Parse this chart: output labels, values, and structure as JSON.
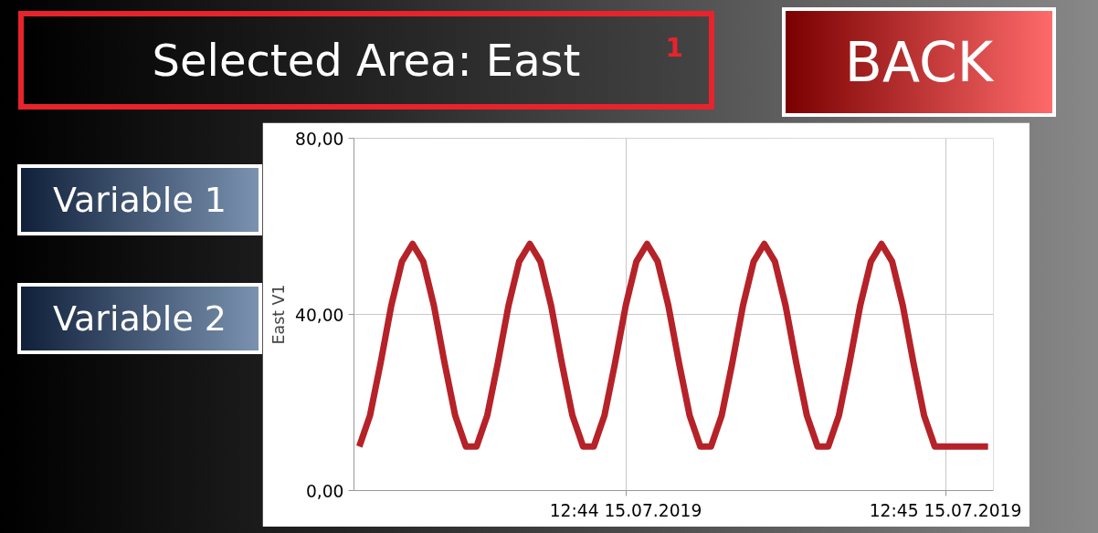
{
  "chart_data": {
    "type": "line",
    "title": "Selected Area: East",
    "ylabel": "East V1",
    "annotations": [
      "1",
      "BACK",
      "Variable 1",
      "Variable 2"
    ],
    "x": [
      "2019-07-15T12:43:10",
      "2019-07-15T12:43:12",
      "2019-07-15T12:43:14",
      "2019-07-15T12:43:16",
      "2019-07-15T12:43:18",
      "2019-07-15T12:43:20",
      "2019-07-15T12:43:22",
      "2019-07-15T12:43:24",
      "2019-07-15T12:43:26",
      "2019-07-15T12:43:28",
      "2019-07-15T12:43:30",
      "2019-07-15T12:43:32",
      "2019-07-15T12:43:34",
      "2019-07-15T12:43:36",
      "2019-07-15T12:43:38",
      "2019-07-15T12:43:40",
      "2019-07-15T12:43:42",
      "2019-07-15T12:43:44",
      "2019-07-15T12:43:46",
      "2019-07-15T12:43:48",
      "2019-07-15T12:43:50",
      "2019-07-15T12:43:52",
      "2019-07-15T12:43:54",
      "2019-07-15T12:43:56",
      "2019-07-15T12:43:58",
      "2019-07-15T12:44:00",
      "2019-07-15T12:44:02",
      "2019-07-15T12:44:04",
      "2019-07-15T12:44:06",
      "2019-07-15T12:44:08",
      "2019-07-15T12:44:10",
      "2019-07-15T12:44:12",
      "2019-07-15T12:44:14",
      "2019-07-15T12:44:16",
      "2019-07-15T12:44:18",
      "2019-07-15T12:44:20",
      "2019-07-15T12:44:22",
      "2019-07-15T12:44:24",
      "2019-07-15T12:44:26",
      "2019-07-15T12:44:28",
      "2019-07-15T12:44:30",
      "2019-07-15T12:44:32",
      "2019-07-15T12:44:34",
      "2019-07-15T12:44:36",
      "2019-07-15T12:44:38",
      "2019-07-15T12:44:40",
      "2019-07-15T12:44:42",
      "2019-07-15T12:44:44",
      "2019-07-15T12:44:46",
      "2019-07-15T12:44:48",
      "2019-07-15T12:44:50",
      "2019-07-15T12:44:52",
      "2019-07-15T12:44:54",
      "2019-07-15T12:44:56",
      "2019-07-15T12:44:58",
      "2019-07-15T12:45:00",
      "2019-07-15T12:45:02",
      "2019-07-15T12:45:04",
      "2019-07-15T12:45:06",
      "2019-07-15T12:45:08"
    ],
    "series": [
      {
        "color": "#b52228",
        "values": [
          10,
          17,
          29,
          42,
          52,
          56,
          52,
          42,
          29,
          17,
          10,
          10,
          17,
          29,
          42,
          52,
          56,
          52,
          42,
          29,
          17,
          10,
          10,
          17,
          29,
          42,
          52,
          56,
          52,
          42,
          29,
          17,
          10,
          10,
          17,
          29,
          42,
          52,
          56,
          52,
          42,
          29,
          17,
          10,
          10,
          17,
          29,
          42,
          52,
          56,
          52,
          42,
          29,
          17,
          10,
          10,
          10,
          10,
          10,
          10
        ]
      }
    ],
    "xlim": [
      "2019-07-15T12:43:09",
      "2019-07-15T12:45:09"
    ],
    "xticks": [
      {
        "value": "2019-07-15T12:44",
        "label": "12:44 15.07.2019"
      },
      {
        "value": "2019-07-15T12:45",
        "label": "12:45 15.07.2019"
      }
    ],
    "ylim": [
      0,
      80
    ],
    "yticks": [
      {
        "value": 0,
        "label": "0,00"
      },
      {
        "value": 40,
        "label": "40,00"
      },
      {
        "value": 80,
        "label": "80,00"
      }
    ],
    "grid": true,
    "marker": "none",
    "line_style": "solid"
  }
}
